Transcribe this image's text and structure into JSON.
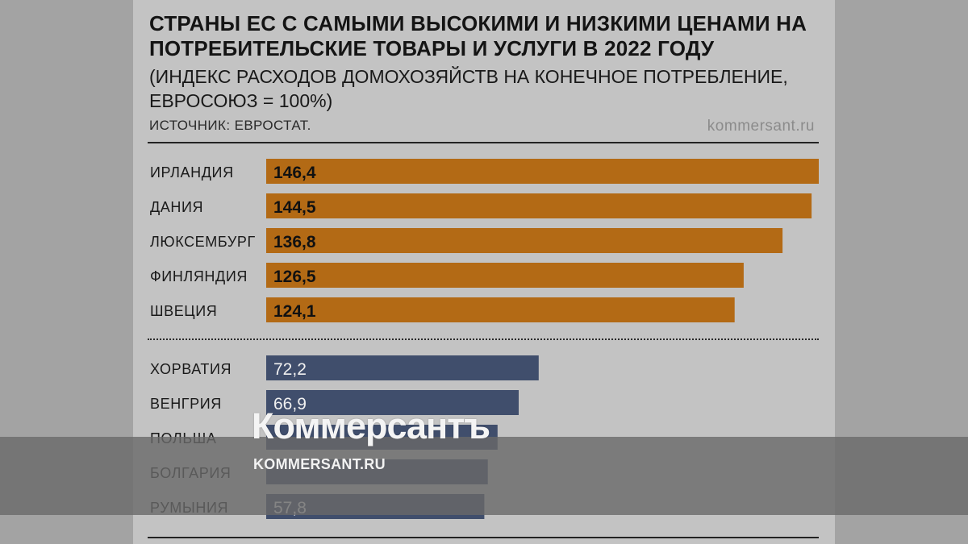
{
  "chart_data": {
    "type": "bar",
    "orientation": "horizontal",
    "title": "СТРАНЫ ЕС С САМЫМИ ВЫСОКИМИ И НИЗКИМИ ЦЕНАМИ НА ПОТРЕБИТЕЛЬСКИЕ ТОВАРЫ И УСЛУГИ В 2022 ГОДУ",
    "subtitle": "(ИНДЕКС РАСХОДОВ ДОМОХОЗЯЙСТВ НА КОНЕЧНОЕ ПОТРЕБЛЕНИЕ, ЕВРОСОЮЗ = 100%)",
    "source": "ИСТОЧНИК: ЕВРОСТАТ.",
    "site": "kommersant.ru",
    "xlim": [
      0,
      146.4
    ],
    "groups": [
      {
        "name": "highest",
        "color": "#b36a15",
        "label_color": "#111111",
        "bars": [
          {
            "country": "ИРЛАНДИЯ",
            "value": 146.4,
            "label": "146,4"
          },
          {
            "country": "ДАНИЯ",
            "value": 144.5,
            "label": "144,5"
          },
          {
            "country": "ЛЮКСЕМБУРГ",
            "value": 136.8,
            "label": "136,8"
          },
          {
            "country": "ФИНЛЯНДИЯ",
            "value": 126.5,
            "label": "126,5"
          },
          {
            "country": "ШВЕЦИЯ",
            "value": 124.1,
            "label": "124,1"
          }
        ]
      },
      {
        "name": "lowest",
        "color": "#404e6c",
        "label_color": "#f0f0f0",
        "bars": [
          {
            "country": "ХОРВАТИЯ",
            "value": 72.2,
            "label": "72,2"
          },
          {
            "country": "ВЕНГРИЯ",
            "value": 66.9,
            "label": "66,9"
          },
          {
            "country": "ПОЛЬША",
            "value": 61.3
          },
          {
            "country": "БОЛГАРИЯ",
            "value": 58.7
          },
          {
            "country": "РУМЫНИЯ",
            "value": 57.8,
            "label": "57,8"
          }
        ]
      }
    ]
  },
  "watermark": {
    "logo": "Коммерсантъ",
    "url": "KOMMERSANT.RU"
  }
}
